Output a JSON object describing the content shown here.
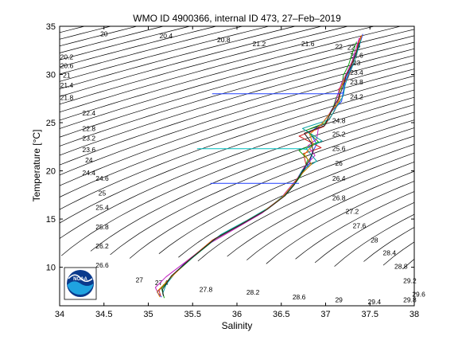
{
  "chart_data": {
    "type": "line",
    "title": "WMO ID 4900366, internal ID 473, 27–Feb–2019",
    "xlabel": "Salinity",
    "ylabel": "Temperature [°C]",
    "xlim": [
      34,
      38
    ],
    "ylim": [
      6,
      35
    ],
    "xticks": [
      34,
      34.5,
      35,
      35.5,
      36,
      36.5,
      37,
      37.5,
      38
    ],
    "xtick_labels": [
      "34",
      "34.5",
      "35",
      "35.5",
      "36",
      "36.5",
      "37",
      "37.5",
      "38"
    ],
    "yticks": [
      10,
      15,
      20,
      25,
      30,
      35
    ],
    "ytick_labels": [
      "10",
      "15",
      "20",
      "25",
      "30",
      "35"
    ],
    "grid": false,
    "legend": "none",
    "density_contours": {
      "start": 19.8,
      "end": 30.0,
      "step": 0.2,
      "labels": [
        {
          "text": "20",
          "s": 34.5,
          "t": 34.2
        },
        {
          "text": "20.4",
          "s": 35.2,
          "t": 34.0
        },
        {
          "text": "20.8",
          "s": 35.85,
          "t": 33.6
        },
        {
          "text": "21.2",
          "s": 36.25,
          "t": 33.2
        },
        {
          "text": "21.6",
          "s": 36.8,
          "t": 33.2
        },
        {
          "text": "22",
          "s": 37.15,
          "t": 32.9
        },
        {
          "text": "20.2",
          "s": 34.08,
          "t": 31.8
        },
        {
          "text": "20.6",
          "s": 34.08,
          "t": 30.9
        },
        {
          "text": "21",
          "s": 34.08,
          "t": 29.9
        },
        {
          "text": "21.4",
          "s": 34.08,
          "t": 28.9
        },
        {
          "text": "21.8",
          "s": 34.08,
          "t": 27.6
        },
        {
          "text": "22.4",
          "s": 34.33,
          "t": 26.0
        },
        {
          "text": "22.8",
          "s": 34.33,
          "t": 24.4
        },
        {
          "text": "23.2",
          "s": 34.33,
          "t": 23.4
        },
        {
          "text": "23.6",
          "s": 34.33,
          "t": 22.2
        },
        {
          "text": "24",
          "s": 34.33,
          "t": 21.1
        },
        {
          "text": "24.4",
          "s": 34.33,
          "t": 19.8
        },
        {
          "text": "24.6",
          "s": 34.48,
          "t": 19.2
        },
        {
          "text": "25",
          "s": 34.48,
          "t": 17.7
        },
        {
          "text": "25.4",
          "s": 34.48,
          "t": 16.2
        },
        {
          "text": "25.8",
          "s": 34.48,
          "t": 14.2
        },
        {
          "text": "26.2",
          "s": 34.48,
          "t": 12.2
        },
        {
          "text": "26.6",
          "s": 34.48,
          "t": 10.2
        },
        {
          "text": "27",
          "s": 34.9,
          "t": 8.7
        },
        {
          "text": "27.4",
          "s": 35.15,
          "t": 8.4
        },
        {
          "text": "27.8",
          "s": 35.65,
          "t": 7.7
        },
        {
          "text": "28.2",
          "s": 36.18,
          "t": 7.4
        },
        {
          "text": "28.6",
          "s": 36.7,
          "t": 6.9
        },
        {
          "text": "29",
          "s": 37.15,
          "t": 6.6
        },
        {
          "text": "29.4",
          "s": 37.55,
          "t": 6.4
        },
        {
          "text": "29.8",
          "s": 37.95,
          "t": 6.6
        },
        {
          "text": "22.2",
          "s": 37.32,
          "t": 32.8
        },
        {
          "text": "22.6",
          "s": 37.35,
          "t": 32.0
        },
        {
          "text": "23",
          "s": 37.35,
          "t": 31.2
        },
        {
          "text": "23.4",
          "s": 37.35,
          "t": 30.2
        },
        {
          "text": "23.8",
          "s": 37.35,
          "t": 29.2
        },
        {
          "text": "24.2",
          "s": 37.35,
          "t": 27.7
        },
        {
          "text": "24.8",
          "s": 37.15,
          "t": 25.2
        },
        {
          "text": "25.2",
          "s": 37.15,
          "t": 23.8
        },
        {
          "text": "25.6",
          "s": 37.15,
          "t": 22.3
        },
        {
          "text": "26",
          "s": 37.15,
          "t": 20.8
        },
        {
          "text": "26.4",
          "s": 37.15,
          "t": 19.2
        },
        {
          "text": "26.8",
          "s": 37.15,
          "t": 17.2
        },
        {
          "text": "27.2",
          "s": 37.3,
          "t": 15.8
        },
        {
          "text": "27.6",
          "s": 37.38,
          "t": 14.3
        },
        {
          "text": "28",
          "s": 37.55,
          "t": 12.8
        },
        {
          "text": "28.4",
          "s": 37.72,
          "t": 11.5
        },
        {
          "text": "28.8",
          "s": 37.85,
          "t": 10.1
        },
        {
          "text": "29.2",
          "s": 37.95,
          "t": 8.6
        },
        {
          "text": "29.6",
          "s": 38.05,
          "t": 7.2
        }
      ]
    },
    "series": [
      {
        "color": "#1f3fff",
        "points": [
          [
            35.15,
            6.9
          ],
          [
            35.1,
            7.4
          ],
          [
            35.22,
            8.6
          ],
          [
            35.42,
            10.5
          ],
          [
            35.7,
            12.6
          ],
          [
            36.0,
            14.2
          ],
          [
            36.3,
            15.8
          ],
          [
            36.5,
            17.2
          ],
          [
            36.6,
            18.3
          ],
          [
            36.72,
            19.6
          ],
          [
            36.82,
            20.8
          ],
          [
            36.85,
            21.9
          ],
          [
            36.9,
            22.8
          ],
          [
            36.82,
            24.0
          ],
          [
            36.95,
            24.8
          ],
          [
            37.05,
            26.0
          ],
          [
            37.18,
            27.2
          ],
          [
            37.2,
            28.3
          ],
          [
            37.22,
            29.3
          ],
          [
            37.28,
            30.5
          ],
          [
            37.32,
            31.8
          ],
          [
            37.38,
            33.0
          ],
          [
            37.42,
            34.2
          ]
        ]
      },
      {
        "color": "#d02020",
        "points": [
          [
            35.14,
            7.0
          ],
          [
            35.12,
            7.6
          ],
          [
            35.25,
            8.9
          ],
          [
            35.45,
            10.7
          ],
          [
            35.72,
            12.8
          ],
          [
            36.02,
            14.3
          ],
          [
            36.32,
            15.9
          ],
          [
            36.52,
            17.3
          ],
          [
            36.62,
            18.4
          ],
          [
            36.7,
            19.4
          ],
          [
            36.78,
            20.6
          ],
          [
            36.75,
            21.8
          ],
          [
            36.95,
            22.4
          ],
          [
            36.7,
            23.6
          ],
          [
            36.98,
            24.6
          ],
          [
            37.1,
            26.2
          ],
          [
            37.15,
            27.5
          ],
          [
            37.15,
            28.5
          ],
          [
            37.25,
            29.6
          ],
          [
            37.3,
            30.8
          ],
          [
            37.35,
            32.0
          ],
          [
            37.36,
            33.0
          ],
          [
            37.4,
            34.0
          ]
        ]
      },
      {
        "color": "#10a010",
        "points": [
          [
            35.18,
            6.8
          ],
          [
            35.15,
            7.8
          ],
          [
            35.28,
            9.2
          ],
          [
            35.5,
            11.0
          ],
          [
            35.78,
            13.1
          ],
          [
            36.05,
            14.5
          ],
          [
            36.35,
            16.1
          ],
          [
            36.55,
            17.5
          ],
          [
            36.65,
            18.6
          ],
          [
            36.75,
            19.9
          ],
          [
            36.8,
            21.2
          ],
          [
            36.7,
            22.1
          ],
          [
            36.92,
            23.0
          ],
          [
            36.78,
            24.2
          ],
          [
            37.0,
            25.0
          ],
          [
            37.08,
            26.4
          ],
          [
            37.12,
            27.6
          ],
          [
            37.18,
            28.7
          ],
          [
            37.2,
            29.9
          ],
          [
            37.26,
            31.0
          ],
          [
            37.3,
            32.2
          ],
          [
            37.35,
            33.4
          ]
        ]
      },
      {
        "color": "#c020c0",
        "points": [
          [
            35.12,
            7.1
          ],
          [
            35.08,
            7.9
          ],
          [
            35.2,
            9.0
          ],
          [
            35.4,
            10.4
          ],
          [
            35.68,
            12.4
          ],
          [
            35.98,
            14.0
          ],
          [
            36.28,
            15.6
          ],
          [
            36.48,
            17.0
          ],
          [
            36.58,
            18.1
          ],
          [
            36.68,
            19.2
          ],
          [
            36.76,
            20.4
          ],
          [
            36.88,
            21.6
          ],
          [
            36.8,
            22.6
          ],
          [
            36.9,
            23.3
          ],
          [
            36.92,
            24.5
          ],
          [
            37.02,
            25.6
          ],
          [
            37.1,
            26.8
          ],
          [
            37.14,
            28.0
          ],
          [
            37.18,
            29.1
          ],
          [
            37.24,
            30.2
          ],
          [
            37.3,
            31.4
          ],
          [
            37.34,
            32.6
          ],
          [
            37.38,
            33.8
          ]
        ]
      },
      {
        "color": "#00a0a0",
        "points": [
          [
            35.16,
            7.2
          ],
          [
            35.2,
            8.2
          ],
          [
            35.32,
            9.6
          ],
          [
            35.55,
            11.4
          ],
          [
            35.82,
            13.4
          ],
          [
            36.1,
            14.8
          ],
          [
            36.38,
            16.3
          ],
          [
            36.56,
            17.7
          ],
          [
            36.66,
            18.8
          ],
          [
            36.74,
            20.1
          ],
          [
            36.9,
            21.0
          ],
          [
            36.78,
            22.3
          ],
          [
            36.96,
            23.1
          ],
          [
            36.74,
            24.4
          ],
          [
            37.04,
            25.3
          ],
          [
            37.12,
            26.6
          ],
          [
            37.2,
            27.8
          ],
          [
            37.22,
            28.9
          ],
          [
            37.26,
            30.0
          ],
          [
            37.32,
            31.2
          ],
          [
            37.36,
            32.4
          ],
          [
            37.4,
            33.6
          ]
        ]
      },
      {
        "color": "#e08000",
        "points": [
          [
            35.13,
            6.9
          ],
          [
            35.1,
            7.5
          ],
          [
            35.24,
            8.8
          ],
          [
            35.44,
            10.6
          ],
          [
            35.71,
            12.7
          ],
          [
            36.01,
            14.25
          ],
          [
            36.31,
            15.85
          ],
          [
            36.51,
            17.25
          ],
          [
            36.61,
            18.35
          ],
          [
            36.71,
            19.5
          ],
          [
            36.84,
            20.7
          ],
          [
            36.76,
            21.7
          ],
          [
            36.86,
            22.7
          ],
          [
            36.82,
            23.8
          ],
          [
            36.96,
            24.9
          ],
          [
            37.06,
            26.1
          ],
          [
            37.16,
            27.3
          ],
          [
            37.16,
            28.4
          ],
          [
            37.21,
            29.5
          ],
          [
            37.27,
            30.6
          ],
          [
            37.33,
            31.9
          ],
          [
            37.37,
            33.1
          ],
          [
            37.41,
            34.1
          ]
        ]
      },
      {
        "color": "#202020",
        "points": [
          [
            35.17,
            7.0
          ],
          [
            35.16,
            7.7
          ],
          [
            35.26,
            9.1
          ],
          [
            35.48,
            10.9
          ],
          [
            35.76,
            13.0
          ],
          [
            36.04,
            14.4
          ],
          [
            36.34,
            16.0
          ],
          [
            36.54,
            17.4
          ],
          [
            36.64,
            18.5
          ],
          [
            36.73,
            19.8
          ],
          [
            36.81,
            21.0
          ],
          [
            36.86,
            22.0
          ],
          [
            36.84,
            22.9
          ],
          [
            36.76,
            23.9
          ],
          [
            36.99,
            24.7
          ],
          [
            37.07,
            26.3
          ],
          [
            37.14,
            27.4
          ],
          [
            37.19,
            28.6
          ],
          [
            37.23,
            29.8
          ],
          [
            37.29,
            30.9
          ],
          [
            37.34,
            32.1
          ],
          [
            37.38,
            33.3
          ]
        ]
      }
    ],
    "spikes": [
      {
        "color": "#2040ff",
        "points": [
          [
            35.72,
            28.0
          ],
          [
            37.15,
            28.0
          ],
          [
            37.2,
            28.1
          ]
        ]
      },
      {
        "color": "#00c0c0",
        "points": [
          [
            35.55,
            22.3
          ],
          [
            36.72,
            22.3
          ],
          [
            36.8,
            22.2
          ]
        ]
      },
      {
        "color": "#1f3fff",
        "points": [
          [
            35.7,
            18.7
          ],
          [
            36.7,
            18.7
          ]
        ]
      }
    ]
  },
  "logo": {
    "text": "NOAA"
  }
}
